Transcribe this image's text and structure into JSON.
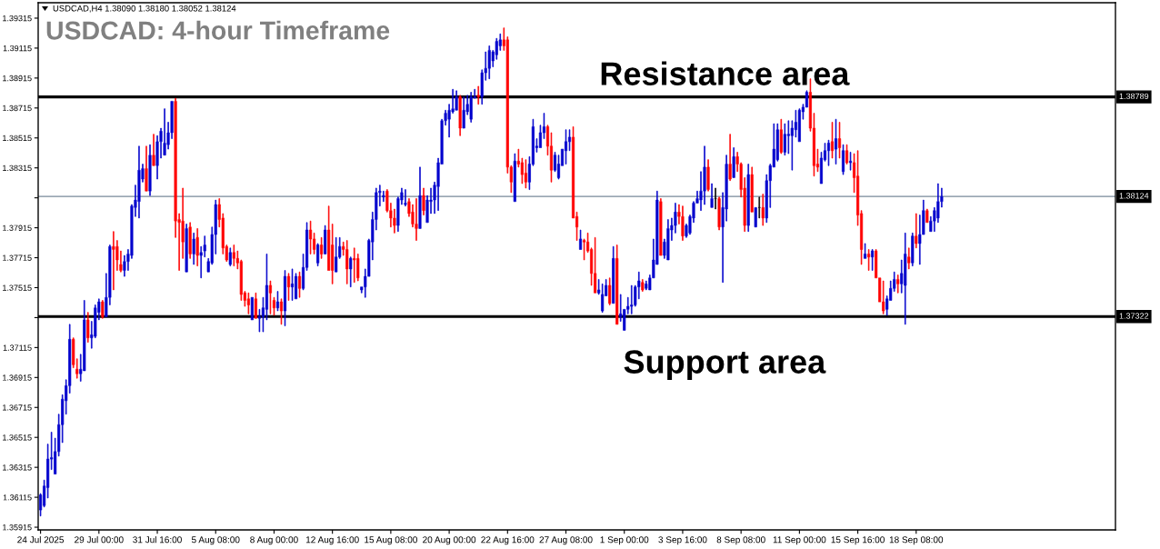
{
  "chart_data": {
    "type": "candlestick",
    "title": "USDCAD: 4-hour Timeframe",
    "subtitle": "USDCAD,H4 1.38090 1.38180 1.38052 1.38124",
    "categories": [
      "24 Jul 2025",
      null,
      null,
      null,
      null,
      null,
      null,
      null,
      null,
      null,
      null,
      null,
      null,
      null,
      null,
      null,
      "29 Jul 00:00",
      null,
      null,
      null,
      null,
      null,
      null,
      null,
      null,
      null,
      null,
      null,
      null,
      null,
      null,
      null,
      "31 Jul 16:00",
      null,
      null,
      null,
      null,
      null,
      null,
      null,
      null,
      null,
      null,
      null,
      null,
      null,
      null,
      null,
      "5 Aug 08:00",
      null,
      null,
      null,
      null,
      null,
      null,
      null,
      null,
      null,
      null,
      null,
      null,
      null,
      null,
      null,
      "8 Aug 00:00",
      null,
      null,
      null,
      null,
      null,
      null,
      null,
      null,
      null,
      null,
      null,
      null,
      null,
      null,
      null,
      "12 Aug 16:00",
      null,
      null,
      null,
      null,
      null,
      null,
      null,
      null,
      null,
      null,
      null,
      null,
      null,
      null,
      null,
      "15 Aug 08:00",
      null,
      null,
      null,
      null,
      null,
      null,
      null,
      null,
      null,
      null,
      null,
      null,
      null,
      null,
      null,
      "20 Aug 00:00",
      null,
      null,
      null,
      null,
      null,
      null,
      null,
      null,
      null,
      null,
      null,
      null,
      null,
      null,
      null,
      "22 Aug 16:00",
      null,
      null,
      null,
      null,
      null,
      null,
      null,
      null,
      null,
      null,
      null,
      null,
      null,
      null,
      null,
      "27 Aug 08:00",
      null,
      null,
      null,
      null,
      null,
      null,
      null,
      null,
      null,
      null,
      null,
      null,
      null,
      null,
      null,
      "1 Sep 00:00",
      null,
      null,
      null,
      null,
      null,
      null,
      null,
      null,
      null,
      null,
      null,
      null,
      null,
      null,
      null,
      "3 Sep 16:00",
      null,
      null,
      null,
      null,
      null,
      null,
      null,
      null,
      null,
      null,
      null,
      null,
      null,
      null,
      null,
      "8 Sep 08:00",
      null,
      null,
      null,
      null,
      null,
      null,
      null,
      null,
      null,
      null,
      null,
      null,
      null,
      null,
      null,
      "11 Sep 00:00",
      null,
      null,
      null,
      null,
      null,
      null,
      null,
      null,
      null,
      null,
      null,
      null,
      null,
      null,
      null,
      "15 Sep 16:00",
      null,
      null,
      null,
      null,
      null,
      null,
      null,
      null,
      null,
      null,
      null,
      null,
      null,
      null,
      null,
      "18 Sep 08:00",
      null,
      null,
      null,
      null,
      null,
      null,
      null
    ],
    "ohlc": [
      [
        1.3603,
        1.3614,
        1.3599,
        1.3613
      ],
      [
        1.3606,
        1.3623,
        1.3605,
        1.3619
      ],
      [
        1.3618,
        1.3647,
        1.3611,
        1.3637
      ],
      [
        1.3637,
        1.3655,
        1.363,
        1.3638
      ],
      [
        1.3627,
        1.3651,
        1.3627,
        1.3642
      ],
      [
        1.3642,
        1.3667,
        1.3639,
        1.366
      ],
      [
        1.366,
        1.368,
        1.3648,
        1.3677
      ],
      [
        1.3676,
        1.369,
        1.3667,
        1.3686
      ],
      [
        1.3686,
        1.3727,
        1.3681,
        1.3717
      ],
      [
        1.3717,
        1.3718,
        1.3698,
        1.37
      ],
      [
        1.3697,
        1.3704,
        1.3691,
        1.3694
      ],
      [
        1.3694,
        1.3707,
        1.3689,
        1.3697
      ],
      [
        1.3696,
        1.3743,
        1.3696,
        1.373
      ],
      [
        1.373,
        1.3735,
        1.3715,
        1.3718
      ],
      [
        1.3718,
        1.3729,
        1.3711,
        1.372
      ],
      [
        1.3719,
        1.374,
        1.3718,
        1.3738
      ],
      [
        1.3735,
        1.3744,
        1.373,
        1.3742
      ],
      [
        1.3742,
        1.3743,
        1.3731,
        1.3732
      ],
      [
        1.3732,
        1.3761,
        1.3732,
        1.3745
      ],
      [
        1.3745,
        1.378,
        1.374,
        1.3779
      ],
      [
        1.3779,
        1.3789,
        1.375,
        1.3777
      ],
      [
        1.3779,
        1.3783,
        1.3763,
        1.377
      ],
      [
        1.3767,
        1.3776,
        1.3762,
        1.3763
      ],
      [
        1.3763,
        1.3773,
        1.3759,
        1.3769
      ],
      [
        1.3769,
        1.3777,
        1.3763,
        1.3774
      ],
      [
        1.3773,
        1.3807,
        1.3771,
        1.3806
      ],
      [
        1.3805,
        1.382,
        1.3799,
        1.381
      ],
      [
        1.3809,
        1.3846,
        1.3798,
        1.383
      ],
      [
        1.3824,
        1.3834,
        1.3822,
        1.3831
      ],
      [
        1.3831,
        1.3846,
        1.3816,
        1.3816
      ],
      [
        1.3816,
        1.3847,
        1.3813,
        1.384
      ],
      [
        1.384,
        1.3854,
        1.3833,
        1.3833
      ],
      [
        1.3833,
        1.3853,
        1.3824,
        1.3849
      ],
      [
        1.3849,
        1.3858,
        1.3838,
        1.3856
      ],
      [
        1.384,
        1.3871,
        1.384,
        1.3848
      ],
      [
        1.3847,
        1.3862,
        1.3844,
        1.3855
      ],
      [
        1.3855,
        1.3876,
        1.3851,
        1.3876
      ],
      [
        1.3876,
        1.3878,
        1.3785,
        1.3796
      ],
      [
        1.3797,
        1.3801,
        1.3763,
        1.3795
      ],
      [
        1.3796,
        1.3818,
        1.3771,
        1.3782
      ],
      [
        1.3762,
        1.3794,
        1.3762,
        1.3791
      ],
      [
        1.3792,
        1.3795,
        1.3771,
        1.3774
      ],
      [
        1.3774,
        1.3788,
        1.3767,
        1.3784
      ],
      [
        1.3785,
        1.3791,
        1.3766,
        1.3773
      ],
      [
        1.3773,
        1.3779,
        1.3758,
        1.3775
      ],
      [
        1.3776,
        1.3786,
        1.3772,
        1.378
      ],
      [
        1.3762,
        1.3771,
        1.3762,
        1.3769
      ],
      [
        1.3768,
        1.3792,
        1.3767,
        1.3787
      ],
      [
        1.3787,
        1.381,
        1.3774,
        1.3807
      ],
      [
        1.3807,
        1.3811,
        1.3792,
        1.3797
      ],
      [
        1.3798,
        1.3801,
        1.3774,
        1.3778
      ],
      [
        1.3779,
        1.378,
        1.3769,
        1.377
      ],
      [
        1.3767,
        1.3778,
        1.3766,
        1.3775
      ],
      [
        1.3775,
        1.378,
        1.3766,
        1.3771
      ],
      [
        1.3771,
        1.3776,
        1.3764,
        1.3768
      ],
      [
        1.3769,
        1.377,
        1.3743,
        1.3747
      ],
      [
        1.3748,
        1.3749,
        1.3739,
        1.3743
      ],
      [
        1.3744,
        1.3748,
        1.3734,
        1.374
      ],
      [
        1.373,
        1.3745,
        1.373,
        1.3745
      ],
      [
        1.3744,
        1.3748,
        1.3731,
        1.3731
      ],
      [
        1.3731,
        1.3737,
        1.3722,
        1.3732
      ],
      [
        1.3732,
        1.3745,
        1.3722,
        1.3738
      ],
      [
        1.3737,
        1.3774,
        1.373,
        1.3753
      ],
      [
        1.3753,
        1.3756,
        1.3734,
        1.3748
      ],
      [
        1.3743,
        1.3745,
        1.3733,
        1.3738
      ],
      [
        1.3738,
        1.3749,
        1.3736,
        1.3742
      ],
      [
        1.3742,
        1.3744,
        1.3727,
        1.3736
      ],
      [
        1.3736,
        1.3763,
        1.3726,
        1.3759
      ],
      [
        1.3759,
        1.3761,
        1.3743,
        1.3752
      ],
      [
        1.3752,
        1.3764,
        1.3743,
        1.3754
      ],
      [
        1.3744,
        1.3761,
        1.3744,
        1.3759
      ],
      [
        1.3759,
        1.3762,
        1.3745,
        1.3751
      ],
      [
        1.3751,
        1.3774,
        1.375,
        1.3765
      ],
      [
        1.3765,
        1.3795,
        1.3763,
        1.379
      ],
      [
        1.379,
        1.3796,
        1.3774,
        1.3784
      ],
      [
        1.3784,
        1.3788,
        1.3774,
        1.3777
      ],
      [
        1.3768,
        1.3781,
        1.3766,
        1.378
      ],
      [
        1.378,
        1.3785,
        1.3771,
        1.3774
      ],
      [
        1.3774,
        1.3793,
        1.3774,
        1.379
      ],
      [
        1.379,
        1.3806,
        1.3763,
        1.3763
      ],
      [
        1.378,
        1.3794,
        1.3754,
        1.3763
      ],
      [
        1.3762,
        1.3785,
        1.3762,
        1.3772
      ],
      [
        1.3772,
        1.3785,
        1.3771,
        1.3779
      ],
      [
        1.3779,
        1.3782,
        1.3773,
        1.3777
      ],
      [
        1.3777,
        1.3783,
        1.3754,
        1.3764
      ],
      [
        1.3764,
        1.3772,
        1.3752,
        1.3771
      ],
      [
        1.3771,
        1.3778,
        1.3755,
        1.377
      ],
      [
        1.3771,
        1.3774,
        1.3756,
        1.3758
      ],
      [
        1.375,
        1.3752,
        1.3748,
        1.3752
      ],
      [
        1.3752,
        1.3764,
        1.3745,
        1.3759
      ],
      [
        1.3759,
        1.3784,
        1.3759,
        1.3783
      ],
      [
        1.3782,
        1.3802,
        1.377,
        1.3797
      ],
      [
        1.3797,
        1.3818,
        1.379,
        1.3815
      ],
      [
        1.3815,
        1.382,
        1.3806,
        1.3816
      ],
      [
        1.3812,
        1.3816,
        1.3809,
        1.3813
      ],
      [
        1.3816,
        1.3817,
        1.3802,
        1.3803
      ],
      [
        1.3803,
        1.3808,
        1.3792,
        1.3798
      ],
      [
        1.3798,
        1.3804,
        1.3788,
        1.3793
      ],
      [
        1.3793,
        1.3812,
        1.3789,
        1.3811
      ],
      [
        1.381,
        1.3818,
        1.3807,
        1.3815
      ],
      [
        1.3807,
        1.3817,
        1.3806,
        1.3808
      ],
      [
        1.3809,
        1.3811,
        1.3799,
        1.3801
      ],
      [
        1.3802,
        1.3807,
        1.3792,
        1.3794
      ],
      [
        1.3794,
        1.3811,
        1.3783,
        1.3791
      ],
      [
        1.3791,
        1.3832,
        1.3791,
        1.3813
      ],
      [
        1.3813,
        1.3818,
        1.38,
        1.3803
      ],
      [
        1.3795,
        1.3813,
        1.3795,
        1.381
      ],
      [
        1.3809,
        1.3818,
        1.3801,
        1.381
      ],
      [
        1.381,
        1.3822,
        1.3801,
        1.382
      ],
      [
        1.3819,
        1.3838,
        1.3803,
        1.3835
      ],
      [
        1.3834,
        1.3864,
        1.3834,
        1.3863
      ],
      [
        1.3863,
        1.387,
        1.386,
        1.3868
      ],
      [
        1.3864,
        1.3874,
        1.3852,
        1.387
      ],
      [
        1.3869,
        1.3884,
        1.3868,
        1.3871
      ],
      [
        1.387,
        1.3883,
        1.387,
        1.3879
      ],
      [
        1.3879,
        1.388,
        1.3853,
        1.3858
      ],
      [
        1.3858,
        1.3879,
        1.3858,
        1.387
      ],
      [
        1.3869,
        1.388,
        1.3867,
        1.3874
      ],
      [
        1.3864,
        1.3882,
        1.3862,
        1.3879
      ],
      [
        1.3878,
        1.3884,
        1.3878,
        1.3879
      ],
      [
        1.388,
        1.3886,
        1.3874,
        1.3879
      ],
      [
        1.3879,
        1.3897,
        1.3874,
        1.3895
      ],
      [
        1.3895,
        1.3909,
        1.389,
        1.3898
      ],
      [
        1.3898,
        1.3913,
        1.3891,
        1.391
      ],
      [
        1.3903,
        1.391,
        1.3899,
        1.3909
      ],
      [
        1.3907,
        1.3918,
        1.3904,
        1.3916
      ],
      [
        1.3913,
        1.3921,
        1.391,
        1.3917
      ],
      [
        1.3917,
        1.3925,
        1.391,
        1.3913
      ],
      [
        1.3917,
        1.3919,
        1.3828,
        1.3832
      ],
      [
        1.3832,
        1.3833,
        1.3815,
        1.3822
      ],
      [
        1.3809,
        1.3841,
        1.3809,
        1.3836
      ],
      [
        1.3836,
        1.3844,
        1.3832,
        1.3834
      ],
      [
        1.3835,
        1.3838,
        1.3821,
        1.3827
      ],
      [
        1.3828,
        1.3837,
        1.3818,
        1.3822
      ],
      [
        1.3822,
        1.3839,
        1.3817,
        1.3834
      ],
      [
        1.3834,
        1.3864,
        1.3833,
        1.3859
      ],
      [
        1.3845,
        1.3851,
        1.3842,
        1.3846
      ],
      [
        1.3845,
        1.386,
        1.3845,
        1.3855
      ],
      [
        1.3855,
        1.3868,
        1.3851,
        1.3859
      ],
      [
        1.3859,
        1.386,
        1.384,
        1.3846
      ],
      [
        1.3846,
        1.3855,
        1.3822,
        1.383
      ],
      [
        1.383,
        1.3842,
        1.3829,
        1.384
      ],
      [
        1.3825,
        1.384,
        1.3824,
        1.3834
      ],
      [
        1.3833,
        1.3844,
        1.3833,
        1.3844
      ],
      [
        1.3843,
        1.3857,
        1.3834,
        1.3849
      ],
      [
        1.3849,
        1.3857,
        1.3843,
        1.3852
      ],
      [
        1.3852,
        1.3859,
        1.3798,
        1.3798
      ],
      [
        1.3799,
        1.3802,
        1.3783,
        1.3792
      ],
      [
        1.3777,
        1.379,
        1.3777,
        1.3784
      ],
      [
        1.3783,
        1.3784,
        1.377,
        1.3782
      ],
      [
        1.3782,
        1.3788,
        1.3775,
        1.3776
      ],
      [
        1.3777,
        1.3778,
        1.3753,
        1.3761
      ],
      [
        1.3761,
        1.3785,
        1.3748,
        1.3748
      ],
      [
        1.3748,
        1.3757,
        1.3747,
        1.375
      ],
      [
        1.3736,
        1.3754,
        1.3735,
        1.3747
      ],
      [
        1.3746,
        1.3757,
        1.3746,
        1.3753
      ],
      [
        1.3753,
        1.3758,
        1.374,
        1.3741
      ],
      [
        1.3741,
        1.3779,
        1.3741,
        1.3771
      ],
      [
        1.3771,
        1.378,
        1.3727,
        1.3727
      ],
      [
        1.3732,
        1.3747,
        1.3729,
        1.3734
      ],
      [
        1.3723,
        1.3737,
        1.3723,
        1.3737
      ],
      [
        1.3737,
        1.3745,
        1.3734,
        1.3739
      ],
      [
        1.3739,
        1.3753,
        1.3734,
        1.374
      ],
      [
        1.374,
        1.3753,
        1.3739,
        1.3752
      ],
      [
        1.3752,
        1.3762,
        1.3744,
        1.3756
      ],
      [
        1.3755,
        1.3757,
        1.3749,
        1.375
      ],
      [
        1.3751,
        1.3756,
        1.375,
        1.3754
      ],
      [
        1.375,
        1.376,
        1.375,
        1.3758
      ],
      [
        1.3758,
        1.3784,
        1.3758,
        1.377
      ],
      [
        1.3767,
        1.3816,
        1.3767,
        1.381
      ],
      [
        1.3809,
        1.3811,
        1.3773,
        1.3773
      ],
      [
        1.3773,
        1.3784,
        1.3771,
        1.3782
      ],
      [
        1.377,
        1.3797,
        1.377,
        1.3791
      ],
      [
        1.379,
        1.3798,
        1.3783,
        1.3793
      ],
      [
        1.3793,
        1.3808,
        1.3788,
        1.3802
      ],
      [
        1.3802,
        1.3807,
        1.3794,
        1.3799
      ],
      [
        1.3799,
        1.3806,
        1.3783,
        1.3786
      ],
      [
        1.3786,
        1.3794,
        1.3785,
        1.3793
      ],
      [
        1.3788,
        1.38,
        1.3787,
        1.3799
      ],
      [
        1.3798,
        1.3809,
        1.3795,
        1.3808
      ],
      [
        1.3808,
        1.3816,
        1.3808,
        1.3811
      ],
      [
        1.381,
        1.3829,
        1.3803,
        1.3816
      ],
      [
        1.3816,
        1.3846,
        1.3807,
        1.3832
      ],
      [
        1.3832,
        1.3837,
        1.3816,
        1.3817
      ],
      [
        1.3805,
        1.3821,
        1.3805,
        1.3811
      ],
      [
        1.3811,
        1.3818,
        1.3804,
        1.3811
      ],
      [
        1.3811,
        1.3812,
        1.379,
        1.3792
      ],
      [
        1.3792,
        1.3815,
        1.3755,
        1.3805
      ],
      [
        1.3804,
        1.384,
        1.3796,
        1.3834
      ],
      [
        1.3834,
        1.3854,
        1.3823,
        1.3824
      ],
      [
        1.3825,
        1.3845,
        1.3825,
        1.3839
      ],
      [
        1.3839,
        1.3842,
        1.3829,
        1.3834
      ],
      [
        1.3834,
        1.3835,
        1.3812,
        1.3817
      ],
      [
        1.3818,
        1.3825,
        1.3789,
        1.3793
      ],
      [
        1.3793,
        1.3834,
        1.3789,
        1.3827
      ],
      [
        1.3827,
        1.3832,
        1.3802,
        1.3802
      ],
      [
        1.3792,
        1.3805,
        1.3792,
        1.3805
      ],
      [
        1.3805,
        1.3812,
        1.3798,
        1.3805
      ],
      [
        1.3805,
        1.3814,
        1.3793,
        1.3798
      ],
      [
        1.3798,
        1.3827,
        1.3795,
        1.3823
      ],
      [
        1.3823,
        1.3834,
        1.3805,
        1.3833
      ],
      [
        1.3832,
        1.3861,
        1.3832,
        1.3844
      ],
      [
        1.3837,
        1.3861,
        1.3836,
        1.3857
      ],
      [
        1.3857,
        1.3864,
        1.3841,
        1.3842
      ],
      [
        1.3842,
        1.3861,
        1.384,
        1.3854
      ],
      [
        1.3853,
        1.3863,
        1.3841,
        1.3854
      ],
      [
        1.3853,
        1.3863,
        1.383,
        1.3858
      ],
      [
        1.3857,
        1.387,
        1.3852,
        1.3862
      ],
      [
        1.3849,
        1.3871,
        1.3849,
        1.387
      ],
      [
        1.3869,
        1.3874,
        1.3864,
        1.3872
      ],
      [
        1.3872,
        1.3883,
        1.3872,
        1.3882
      ],
      [
        1.3882,
        1.3891,
        1.3856,
        1.3858
      ],
      [
        1.3858,
        1.3868,
        1.3826,
        1.3833
      ],
      [
        1.3834,
        1.3844,
        1.3829,
        1.3832
      ],
      [
        1.3821,
        1.3842,
        1.3821,
        1.3838
      ],
      [
        1.3837,
        1.3848,
        1.3836,
        1.3843
      ],
      [
        1.3843,
        1.385,
        1.3833,
        1.3848
      ],
      [
        1.3849,
        1.3862,
        1.3838,
        1.3843
      ],
      [
        1.3844,
        1.3864,
        1.3834,
        1.3851
      ],
      [
        1.3851,
        1.3862,
        1.3838,
        1.3845
      ],
      [
        1.3829,
        1.3847,
        1.3827,
        1.3843
      ],
      [
        1.3843,
        1.3847,
        1.3834,
        1.3835
      ],
      [
        1.3835,
        1.3842,
        1.383,
        1.3836
      ],
      [
        1.3835,
        1.3841,
        1.3815,
        1.3825
      ],
      [
        1.3826,
        1.3843,
        1.3793,
        1.38
      ],
      [
        1.3801,
        1.3803,
        1.3767,
        1.3777
      ],
      [
        1.3771,
        1.3781,
        1.3771,
        1.3774
      ],
      [
        1.3774,
        1.3777,
        1.3763,
        1.3772
      ],
      [
        1.3772,
        1.3777,
        1.3763,
        1.3776
      ],
      [
        1.3776,
        1.3777,
        1.3758,
        1.3758
      ],
      [
        1.3758,
        1.3758,
        1.3742,
        1.3742
      ],
      [
        1.3742,
        1.3756,
        1.3734,
        1.3736
      ],
      [
        1.3737,
        1.3746,
        1.3733,
        1.3744
      ],
      [
        1.3743,
        1.3756,
        1.3743,
        1.3751
      ],
      [
        1.3751,
        1.3762,
        1.3749,
        1.3757
      ],
      [
        1.3757,
        1.376,
        1.3748,
        1.3754
      ],
      [
        1.3754,
        1.377,
        1.3748,
        1.3761
      ],
      [
        1.3753,
        1.3788,
        1.3727,
        1.3774
      ],
      [
        1.3772,
        1.3778,
        1.3764,
        1.3768
      ],
      [
        1.3768,
        1.3788,
        1.3766,
        1.3786
      ],
      [
        1.3786,
        1.3801,
        1.3778,
        1.3781
      ],
      [
        1.3781,
        1.38,
        1.3767,
        1.3787
      ],
      [
        1.3787,
        1.381,
        1.3787,
        1.3803
      ],
      [
        1.3803,
        1.3804,
        1.3795,
        1.3795
      ],
      [
        1.3789,
        1.3799,
        1.3789,
        1.3796
      ],
      [
        1.3796,
        1.3805,
        1.3789,
        1.3803
      ],
      [
        1.3798,
        1.3821,
        1.3795,
        1.3809
      ],
      [
        1.3809,
        1.3818,
        1.38052,
        1.38124
      ]
    ],
    "colors": [
      "#0000cd",
      "#0000cd",
      "#0000cd",
      "#0000cd",
      "#0000cd",
      "#0000cd",
      "#0000cd",
      "#0000cd",
      "#0000cd",
      "#ff0000",
      "#ff0000",
      "#0000cd",
      "#0000cd",
      "#ff0000",
      "#0000cd",
      "#0000cd",
      "#0000cd",
      "#ff0000",
      "#0000cd",
      "#0000cd",
      "#ff0000",
      "#ff0000",
      "#ff0000",
      "#0000cd",
      "#0000cd",
      "#0000cd",
      "#0000cd",
      "#0000cd",
      "#0000cd",
      "#ff0000",
      "#0000cd",
      "#ff0000",
      "#0000cd",
      "#0000cd",
      "#0000cd",
      "#0000cd",
      "#0000cd",
      "#ff0000",
      "#ff0000",
      "#ff0000",
      "#0000cd",
      "#ff0000",
      "#0000cd",
      "#ff0000",
      "#0000cd",
      "#0000cd",
      "#0000cd",
      "#0000cd",
      "#0000cd",
      "#ff0000",
      "#ff0000",
      "#ff0000",
      "#0000cd",
      "#ff0000",
      "#ff0000",
      "#ff0000",
      "#ff0000",
      "#ff0000",
      "#0000cd",
      "#ff0000",
      "#0000cd",
      "#0000cd",
      "#0000cd",
      "#ff0000",
      "#ff0000",
      "#0000cd",
      "#ff0000",
      "#0000cd",
      "#ff0000",
      "#0000cd",
      "#0000cd",
      "#ff0000",
      "#0000cd",
      "#0000cd",
      "#ff0000",
      "#ff0000",
      "#0000cd",
      "#ff0000",
      "#0000cd",
      "#ff0000",
      "#ff0000",
      "#0000cd",
      "#0000cd",
      "#ff0000",
      "#ff0000",
      "#0000cd",
      "#ff0000",
      "#ff0000",
      "#0000cd",
      "#0000cd",
      "#0000cd",
      "#0000cd",
      "#0000cd",
      "#0000cd",
      "#0000cd",
      "#ff0000",
      "#ff0000",
      "#ff0000",
      "#0000cd",
      "#0000cd",
      "#0000cd",
      "#ff0000",
      "#ff0000",
      "#ff0000",
      "#0000cd",
      "#ff0000",
      "#0000cd",
      "#0000cd",
      "#0000cd",
      "#0000cd",
      "#0000cd",
      "#0000cd",
      "#0000cd",
      "#0000cd",
      "#0000cd",
      "#ff0000",
      "#0000cd",
      "#0000cd",
      "#0000cd",
      "#0000cd",
      "#ff0000",
      "#0000cd",
      "#0000cd",
      "#0000cd",
      "#0000cd",
      "#0000cd",
      "#0000cd",
      "#ff0000",
      "#ff0000",
      "#ff0000",
      "#0000cd",
      "#ff0000",
      "#ff0000",
      "#ff0000",
      "#0000cd",
      "#0000cd",
      "#0000cd",
      "#0000cd",
      "#0000cd",
      "#ff0000",
      "#ff0000",
      "#0000cd",
      "#0000cd",
      "#0000cd",
      "#0000cd",
      "#0000cd",
      "#ff0000",
      "#ff0000",
      "#0000cd",
      "#ff0000",
      "#ff0000",
      "#ff0000",
      "#ff0000",
      "#0000cd",
      "#0000cd",
      "#0000cd",
      "#ff0000",
      "#0000cd",
      "#ff0000",
      "#0000cd",
      "#0000cd",
      "#0000cd",
      "#0000cd",
      "#0000cd",
      "#0000cd",
      "#ff0000",
      "#0000cd",
      "#0000cd",
      "#0000cd",
      "#0000cd",
      "#ff0000",
      "#0000cd",
      "#0000cd",
      "#0000cd",
      "#0000cd",
      "#ff0000",
      "#ff0000",
      "#0000cd",
      "#0000cd",
      "#0000cd",
      "#0000cd",
      "#0000cd",
      "#0000cd",
      "#ff0000",
      "#0000cd",
      "#000000",
      "#ff0000",
      "#0000cd",
      "#0000cd",
      "#ff0000",
      "#0000cd",
      "#ff0000",
      "#ff0000",
      "#ff0000",
      "#0000cd",
      "#ff0000",
      "#0000cd",
      "#000000",
      "#ff0000",
      "#0000cd",
      "#0000cd",
      "#0000cd",
      "#0000cd",
      "#ff0000",
      "#0000cd",
      "#0000cd",
      "#0000cd",
      "#0000cd",
      "#0000cd",
      "#0000cd",
      "#0000cd",
      "#ff0000",
      "#ff0000",
      "#ff0000",
      "#0000cd",
      "#0000cd",
      "#0000cd",
      "#ff0000",
      "#0000cd",
      "#ff0000",
      "#0000cd",
      "#ff0000",
      "#0000cd",
      "#ff0000",
      "#ff0000",
      "#ff0000",
      "#0000cd",
      "#ff0000",
      "#0000cd",
      "#ff0000",
      "#ff0000",
      "#ff0000",
      "#0000cd",
      "#0000cd",
      "#0000cd",
      "#ff0000",
      "#0000cd",
      "#0000cd",
      "#ff0000",
      "#0000cd",
      "#ff0000",
      "#0000cd",
      "#0000cd",
      "#ff0000",
      "#0000cd",
      "#0000cd",
      "#0000cd",
      "#0000cd"
    ],
    "ylim": [
      1.35897,
      1.39418
    ],
    "yticks": [
      1.35915,
      1.36115,
      1.36315,
      1.36515,
      1.36715,
      1.36915,
      1.37115,
      {
        "value": 1.37315,
        "label": null
      },
      1.37515,
      1.37715,
      1.37915,
      {
        "value": 1.38115,
        "label": null
      },
      1.38315,
      1.38515,
      1.38715,
      1.38915,
      1.39115,
      1.39315
    ],
    "ref_lines": [
      {
        "axis": "y",
        "value": 1.38789,
        "label": "1.38789",
        "color": "#000000",
        "line_style": "solid"
      },
      {
        "axis": "y",
        "value": 1.38124,
        "label": "1.38124",
        "color": "#778899",
        "line_style": "solid"
      },
      {
        "axis": "y",
        "value": 1.37322,
        "label": "1.37322",
        "color": "#000000",
        "line_style": "solid"
      }
    ],
    "annotations": [
      {
        "text": "Resistance area",
        "y": 1.38789
      },
      {
        "text": "Support area",
        "y": 1.37322
      }
    ]
  }
}
